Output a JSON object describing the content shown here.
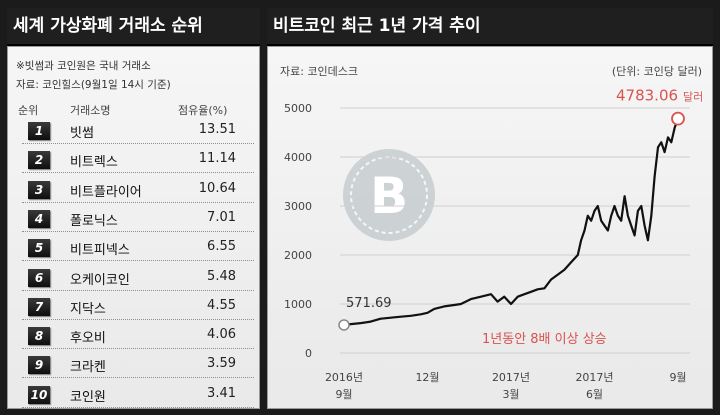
{
  "left_panel": {
    "title": "세계 가상화폐 거래소 순위",
    "note1": "※빗썸과 코인원은 국내 거래소",
    "note2": "자료: 코인힐스(9월1일 14시 기준)",
    "headers": {
      "rank": "순위",
      "name": "거래소명",
      "share": "점유율(%)"
    },
    "rows": [
      {
        "rank": "1",
        "name": "빗썸",
        "share": "13.51"
      },
      {
        "rank": "2",
        "name": "비트렉스",
        "share": "11.14"
      },
      {
        "rank": "3",
        "name": "비트플라이어",
        "share": "10.64"
      },
      {
        "rank": "4",
        "name": "폴로닉스",
        "share": "7.01"
      },
      {
        "rank": "5",
        "name": "비트피넥스",
        "share": "6.55"
      },
      {
        "rank": "6",
        "name": "오케이코인",
        "share": "5.48"
      },
      {
        "rank": "7",
        "name": "지닥스",
        "share": "4.55"
      },
      {
        "rank": "8",
        "name": "후오비",
        "share": "4.06"
      },
      {
        "rank": "9",
        "name": "크라켄",
        "share": "3.59"
      },
      {
        "rank": "10",
        "name": "코인원",
        "share": "3.41"
      }
    ]
  },
  "right_panel": {
    "title": "비트코인 최근 1년 가격 추이",
    "source": "자료: 코인데스크",
    "unit": "(단위: 코인당 달러)"
  },
  "chart_data": {
    "type": "line",
    "title": "비트코인 최근 1년 가격 추이",
    "ylim": [
      0,
      5000
    ],
    "yticks": [
      0,
      1000,
      2000,
      3000,
      4000,
      5000
    ],
    "x_ticks": [
      {
        "pos": 0.0,
        "label": "2016년",
        "label2": "9월"
      },
      {
        "pos": 0.25,
        "label": "12월",
        "label2": ""
      },
      {
        "pos": 0.5,
        "label": "2017년",
        "label2": "3월"
      },
      {
        "pos": 0.75,
        "label": "2017년",
        "label2": "6월"
      },
      {
        "pos": 1.0,
        "label": "9월",
        "label2": ""
      }
    ],
    "series": [
      {
        "x": [
          0.0,
          0.02,
          0.05,
          0.08,
          0.11,
          0.14,
          0.17,
          0.2,
          0.23,
          0.25,
          0.27,
          0.3,
          0.33,
          0.35,
          0.38,
          0.41,
          0.44,
          0.46,
          0.48,
          0.5,
          0.52,
          0.54,
          0.56,
          0.58,
          0.6,
          0.62,
          0.64,
          0.66,
          0.68,
          0.7,
          0.71,
          0.72,
          0.73,
          0.74,
          0.75,
          0.76,
          0.77,
          0.78,
          0.79,
          0.8,
          0.81,
          0.82,
          0.83,
          0.84,
          0.85,
          0.86,
          0.87,
          0.88,
          0.89,
          0.9,
          0.91,
          0.92,
          0.93,
          0.94,
          0.95,
          0.96,
          0.97,
          0.98,
          0.99,
          1.0
        ],
        "values": [
          571.69,
          590,
          610,
          640,
          700,
          720,
          740,
          760,
          790,
          820,
          900,
          950,
          980,
          1000,
          1100,
          1150,
          1200,
          1050,
          1150,
          1000,
          1150,
          1200,
          1250,
          1300,
          1320,
          1500,
          1600,
          1700,
          1850,
          2000,
          2300,
          2500,
          2800,
          2700,
          2900,
          3000,
          2700,
          2600,
          2500,
          2800,
          3000,
          2800,
          2700,
          3200,
          2800,
          2600,
          2400,
          2900,
          3000,
          2600,
          2300,
          2800,
          3600,
          4200,
          4300,
          4100,
          4400,
          4300,
          4600,
          4783.06
        ]
      }
    ],
    "annotations": {
      "start_value": "571.69",
      "end_value": "4783.06",
      "end_unit": "달러",
      "note": "1년동안 8배 이상 상승"
    },
    "colors": {
      "line": "#111111",
      "highlight": "#d9534f",
      "grid": "#cfcfcf"
    }
  }
}
